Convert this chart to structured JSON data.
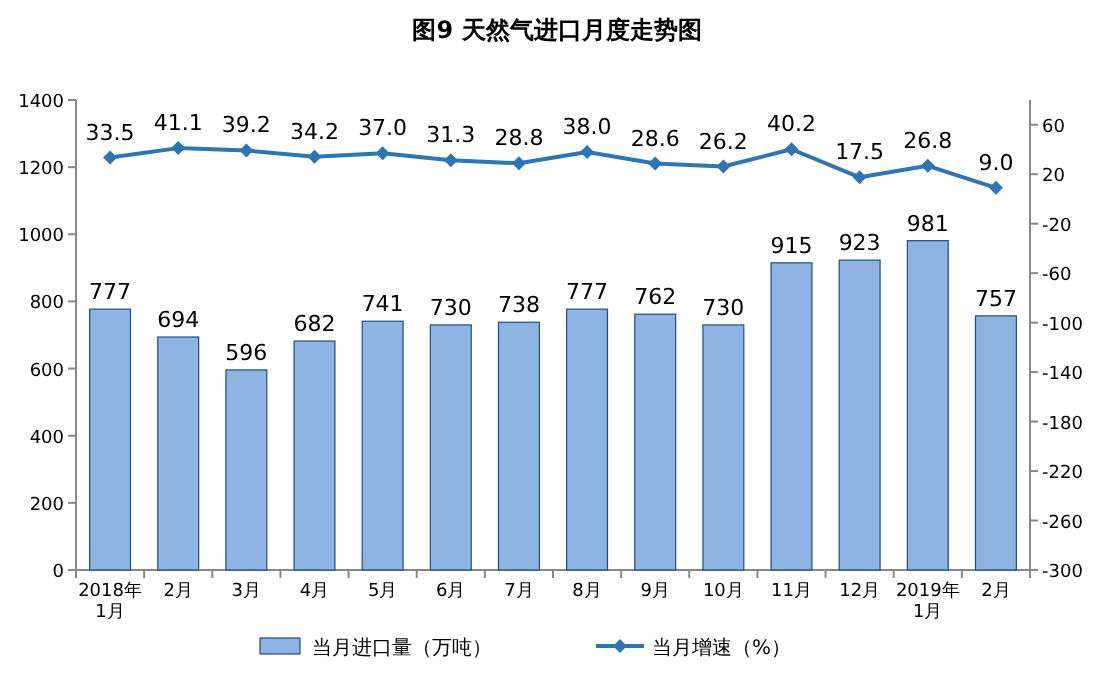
{
  "chart_data": {
    "type": "bar",
    "title": "图9  天然气进口月度走势图",
    "categories": [
      "2018年\n1月",
      "2月",
      "3月",
      "4月",
      "5月",
      "6月",
      "7月",
      "8月",
      "9月",
      "10月",
      "11月",
      "12月",
      "2019年\n1月",
      "2月"
    ],
    "series": [
      {
        "name": "当月进口量（万吨）",
        "color": "#8db4e2",
        "values": [
          777,
          694,
          596,
          682,
          741,
          730,
          738,
          777,
          762,
          730,
          915,
          923,
          981,
          757
        ]
      },
      {
        "name": "当月增速（%）",
        "type": "line",
        "axis": "y2",
        "color": "#2e75b6",
        "marker": "diamond",
        "values": [
          33.5,
          41.1,
          39.2,
          34.2,
          37.0,
          31.3,
          28.8,
          38.0,
          28.6,
          26.2,
          40.2,
          17.5,
          26.8,
          9.0
        ],
        "value_labels": [
          "33.5",
          "41.1",
          "39.2",
          "34.2",
          "37.0",
          "31.3",
          "28.8",
          "38.0",
          "28.6",
          "26.2",
          "40.2",
          "17.5",
          "26.8",
          "9.0"
        ]
      }
    ],
    "ylim": [
      0,
      1400
    ],
    "yticks": [
      0,
      200,
      400,
      600,
      800,
      1000,
      1200,
      1400
    ],
    "y2lim": [
      -300,
      80
    ],
    "y2ticks": [
      60,
      20,
      -20,
      -60,
      -100,
      -140,
      -180,
      -220,
      -260,
      -300
    ],
    "data_labels": true,
    "legend": "bottom",
    "grid": false
  }
}
